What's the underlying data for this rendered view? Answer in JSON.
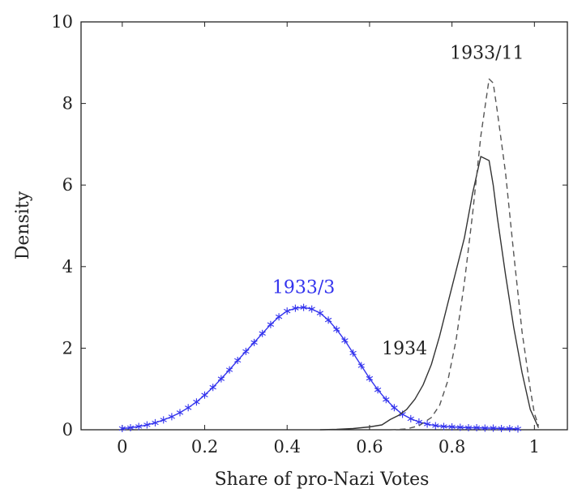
{
  "chart_data": {
    "type": "line",
    "title": "",
    "xlabel": "Share of pro-Nazi Votes",
    "ylabel": "Density",
    "xlim": [
      -0.1,
      1.08
    ],
    "ylim": [
      0,
      10
    ],
    "xticks": [
      "0",
      "0.2",
      "0.4",
      "0.6",
      "0.8",
      "1"
    ],
    "yticks": [
      "0",
      "2",
      "4",
      "6",
      "8",
      "10"
    ],
    "grid": false,
    "colors": {
      "blue": "#3333ee",
      "dark": "#333333",
      "dashed": "#555555",
      "axis": "#222222"
    },
    "series": [
      {
        "name": "1933/3",
        "style": "solid-with-star-markers",
        "color": "#3333ee",
        "points": [
          [
            0.0,
            0.03
          ],
          [
            0.02,
            0.05
          ],
          [
            0.04,
            0.08
          ],
          [
            0.06,
            0.12
          ],
          [
            0.08,
            0.17
          ],
          [
            0.1,
            0.24
          ],
          [
            0.12,
            0.32
          ],
          [
            0.14,
            0.42
          ],
          [
            0.16,
            0.54
          ],
          [
            0.18,
            0.68
          ],
          [
            0.2,
            0.85
          ],
          [
            0.22,
            1.04
          ],
          [
            0.24,
            1.25
          ],
          [
            0.26,
            1.47
          ],
          [
            0.28,
            1.7
          ],
          [
            0.3,
            1.92
          ],
          [
            0.32,
            2.14
          ],
          [
            0.34,
            2.36
          ],
          [
            0.36,
            2.58
          ],
          [
            0.38,
            2.77
          ],
          [
            0.4,
            2.91
          ],
          [
            0.42,
            2.98
          ],
          [
            0.44,
            3.0
          ],
          [
            0.46,
            2.96
          ],
          [
            0.48,
            2.86
          ],
          [
            0.5,
            2.69
          ],
          [
            0.52,
            2.46
          ],
          [
            0.54,
            2.19
          ],
          [
            0.56,
            1.88
          ],
          [
            0.58,
            1.57
          ],
          [
            0.6,
            1.26
          ],
          [
            0.62,
            0.98
          ],
          [
            0.64,
            0.74
          ],
          [
            0.66,
            0.54
          ],
          [
            0.68,
            0.38
          ],
          [
            0.7,
            0.27
          ],
          [
            0.72,
            0.19
          ],
          [
            0.74,
            0.14
          ],
          [
            0.76,
            0.1
          ],
          [
            0.78,
            0.08
          ],
          [
            0.8,
            0.07
          ],
          [
            0.82,
            0.06
          ],
          [
            0.84,
            0.05
          ],
          [
            0.86,
            0.05
          ],
          [
            0.88,
            0.04
          ],
          [
            0.9,
            0.04
          ],
          [
            0.92,
            0.03
          ],
          [
            0.94,
            0.03
          ],
          [
            0.96,
            0.02
          ]
        ]
      },
      {
        "name": "1934",
        "style": "solid",
        "color": "#333333",
        "points": [
          [
            0.48,
            0.0
          ],
          [
            0.52,
            0.01
          ],
          [
            0.56,
            0.03
          ],
          [
            0.6,
            0.07
          ],
          [
            0.63,
            0.12
          ],
          [
            0.65,
            0.25
          ],
          [
            0.67,
            0.35
          ],
          [
            0.69,
            0.5
          ],
          [
            0.71,
            0.75
          ],
          [
            0.73,
            1.1
          ],
          [
            0.75,
            1.6
          ],
          [
            0.77,
            2.3
          ],
          [
            0.79,
            3.1
          ],
          [
            0.81,
            3.9
          ],
          [
            0.83,
            4.7
          ],
          [
            0.85,
            5.8
          ],
          [
            0.87,
            6.7
          ],
          [
            0.89,
            6.6
          ],
          [
            0.9,
            6.0
          ],
          [
            0.91,
            5.2
          ],
          [
            0.93,
            3.8
          ],
          [
            0.95,
            2.5
          ],
          [
            0.97,
            1.4
          ],
          [
            0.99,
            0.5
          ],
          [
            1.01,
            0.05
          ]
        ]
      },
      {
        "name": "1933/11",
        "style": "dashed",
        "color": "#555555",
        "points": [
          [
            0.65,
            0.0
          ],
          [
            0.69,
            0.02
          ],
          [
            0.72,
            0.1
          ],
          [
            0.75,
            0.3
          ],
          [
            0.77,
            0.6
          ],
          [
            0.79,
            1.2
          ],
          [
            0.81,
            2.2
          ],
          [
            0.83,
            3.6
          ],
          [
            0.85,
            5.3
          ],
          [
            0.87,
            7.2
          ],
          [
            0.89,
            8.6
          ],
          [
            0.9,
            8.5
          ],
          [
            0.91,
            7.8
          ],
          [
            0.93,
            6.3
          ],
          [
            0.95,
            4.3
          ],
          [
            0.97,
            2.4
          ],
          [
            0.99,
            1.0
          ],
          [
            1.0,
            0.4
          ],
          [
            1.01,
            0.1
          ]
        ]
      }
    ],
    "annotations": [
      {
        "text": "1933/3",
        "series": "1933/3",
        "x": 0.44,
        "y": 3.35,
        "color": "#3333ee"
      },
      {
        "text": "1934",
        "series": "1934",
        "x": 0.685,
        "y": 1.85,
        "color": "#222222"
      },
      {
        "text": "1933/11",
        "series": "1933/11",
        "x": 0.885,
        "y": 9.1,
        "color": "#222222"
      }
    ]
  }
}
